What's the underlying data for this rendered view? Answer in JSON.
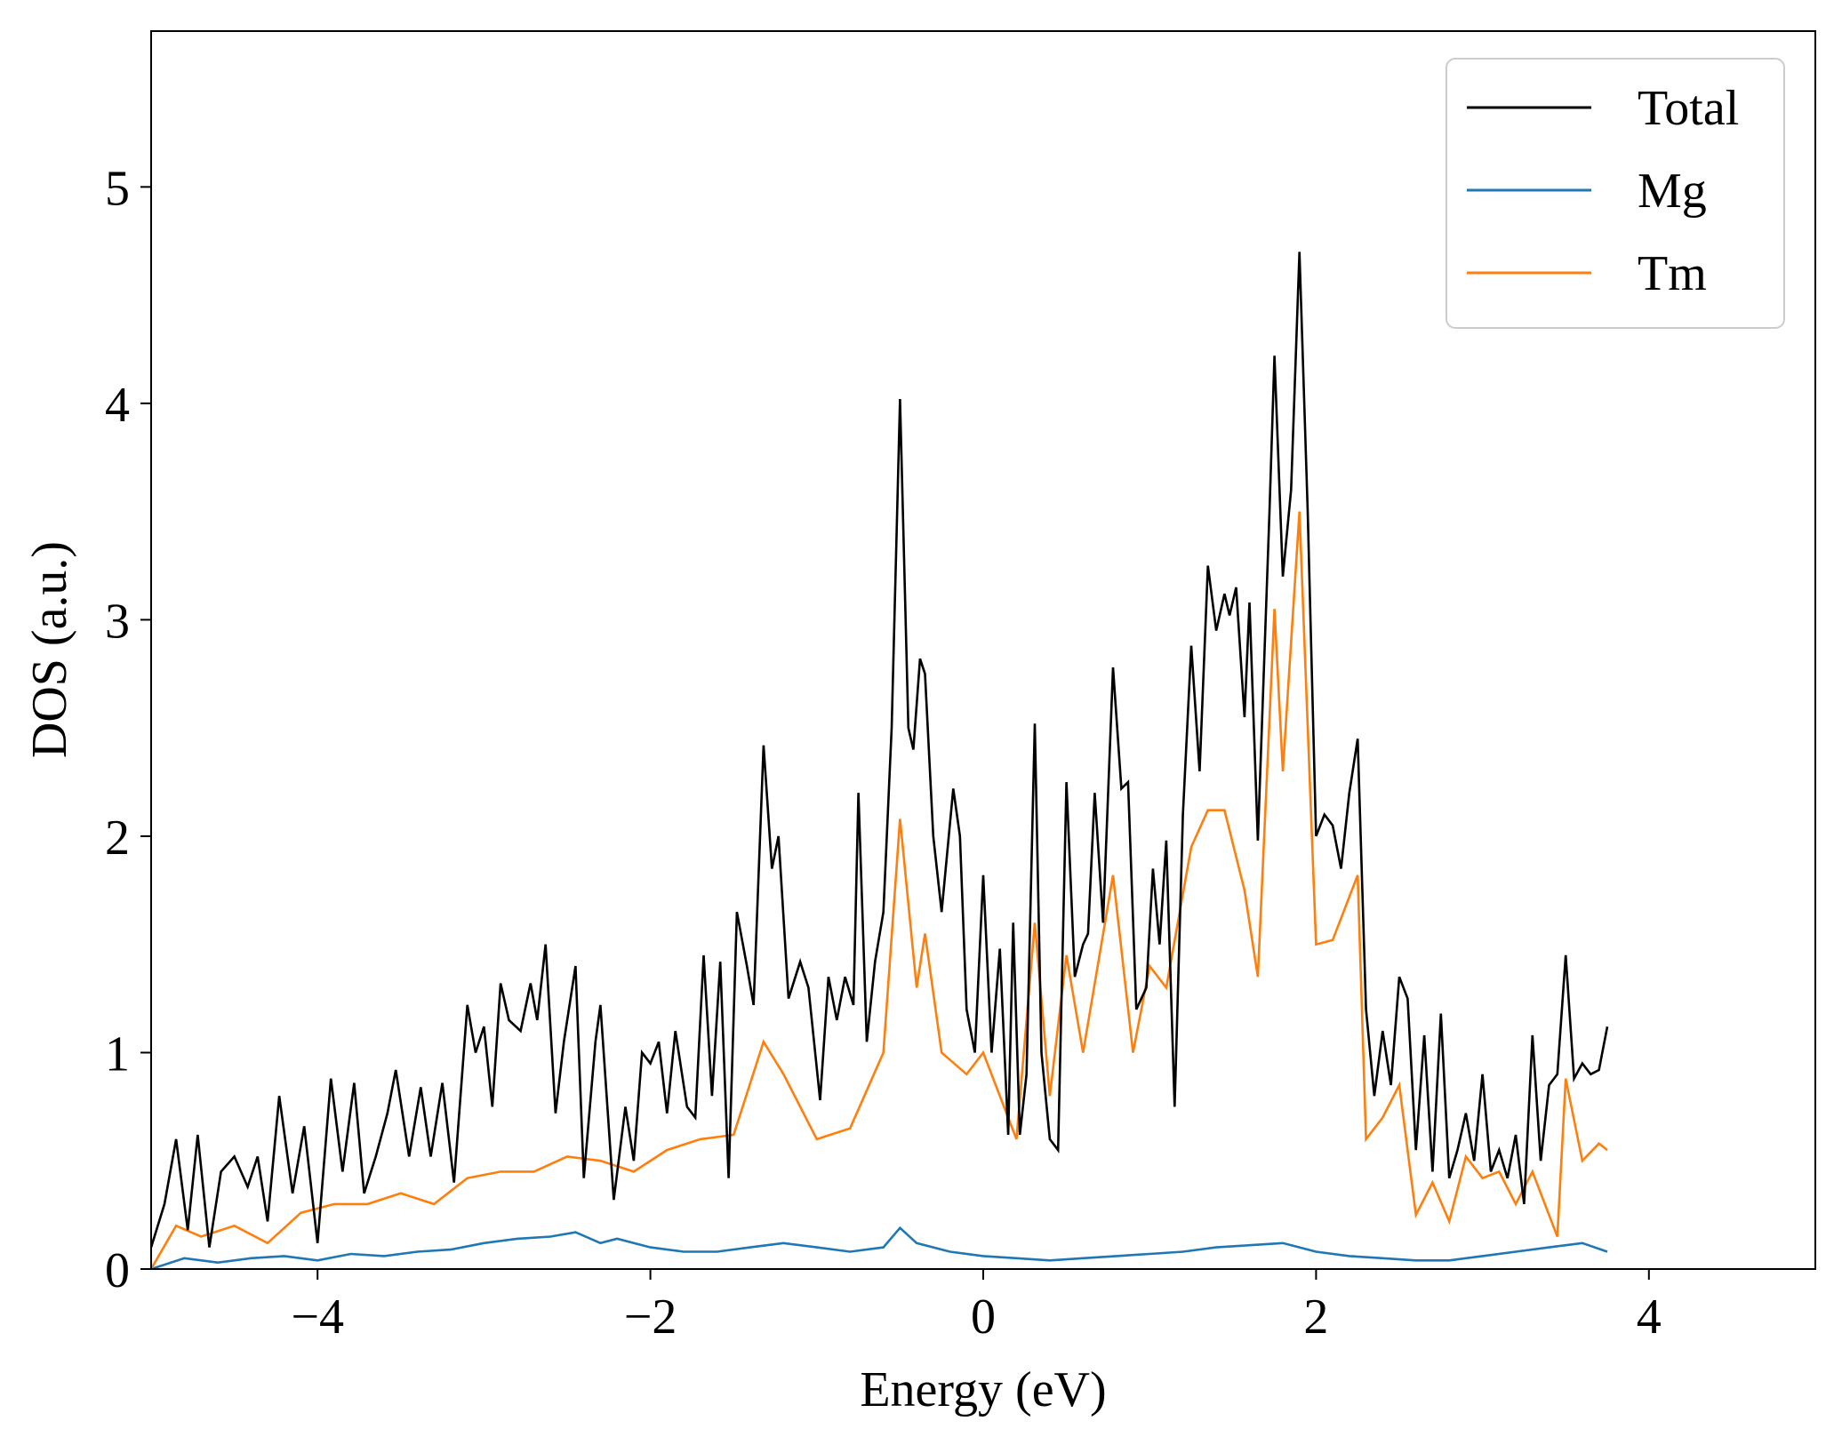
{
  "chart_data": {
    "type": "line",
    "title": "",
    "xlabel": "Energy (eV)",
    "ylabel": "DOS (a.u.)",
    "xlim": [
      -5,
      5
    ],
    "ylim": [
      0,
      5.72
    ],
    "x_ticks": [
      -4,
      -2,
      0,
      2,
      4
    ],
    "x_tick_labels": [
      "−4",
      "−2",
      "0",
      "2",
      "4"
    ],
    "y_ticks": [
      0,
      1,
      2,
      3,
      4,
      5
    ],
    "y_tick_labels": [
      "0",
      "1",
      "2",
      "3",
      "4",
      "5"
    ],
    "grid": false,
    "legend_position": "top-right",
    "series": [
      {
        "name": "Total",
        "color": "#000000",
        "points": [
          [
            -5.0,
            0.1
          ],
          [
            -4.92,
            0.3
          ],
          [
            -4.85,
            0.6
          ],
          [
            -4.78,
            0.18
          ],
          [
            -4.72,
            0.62
          ],
          [
            -4.65,
            0.1
          ],
          [
            -4.58,
            0.45
          ],
          [
            -4.5,
            0.52
          ],
          [
            -4.42,
            0.38
          ],
          [
            -4.36,
            0.52
          ],
          [
            -4.3,
            0.22
          ],
          [
            -4.23,
            0.8
          ],
          [
            -4.15,
            0.35
          ],
          [
            -4.08,
            0.66
          ],
          [
            -4.0,
            0.12
          ],
          [
            -3.92,
            0.88
          ],
          [
            -3.85,
            0.45
          ],
          [
            -3.78,
            0.86
          ],
          [
            -3.72,
            0.35
          ],
          [
            -3.65,
            0.52
          ],
          [
            -3.58,
            0.72
          ],
          [
            -3.53,
            0.92
          ],
          [
            -3.45,
            0.52
          ],
          [
            -3.38,
            0.84
          ],
          [
            -3.32,
            0.52
          ],
          [
            -3.25,
            0.86
          ],
          [
            -3.18,
            0.4
          ],
          [
            -3.1,
            1.22
          ],
          [
            -3.05,
            1.0
          ],
          [
            -3.0,
            1.12
          ],
          [
            -2.95,
            0.75
          ],
          [
            -2.9,
            1.32
          ],
          [
            -2.85,
            1.15
          ],
          [
            -2.78,
            1.1
          ],
          [
            -2.72,
            1.32
          ],
          [
            -2.68,
            1.15
          ],
          [
            -2.63,
            1.5
          ],
          [
            -2.57,
            0.72
          ],
          [
            -2.52,
            1.05
          ],
          [
            -2.45,
            1.4
          ],
          [
            -2.4,
            0.42
          ],
          [
            -2.33,
            1.05
          ],
          [
            -2.3,
            1.22
          ],
          [
            -2.22,
            0.32
          ],
          [
            -2.15,
            0.75
          ],
          [
            -2.1,
            0.5
          ],
          [
            -2.05,
            1.0
          ],
          [
            -2.0,
            0.95
          ],
          [
            -1.95,
            1.05
          ],
          [
            -1.9,
            0.72
          ],
          [
            -1.85,
            1.1
          ],
          [
            -1.78,
            0.75
          ],
          [
            -1.73,
            0.7
          ],
          [
            -1.68,
            1.45
          ],
          [
            -1.63,
            0.8
          ],
          [
            -1.58,
            1.42
          ],
          [
            -1.53,
            0.42
          ],
          [
            -1.48,
            1.65
          ],
          [
            -1.42,
            1.4
          ],
          [
            -1.38,
            1.22
          ],
          [
            -1.32,
            2.42
          ],
          [
            -1.27,
            1.85
          ],
          [
            -1.23,
            2.0
          ],
          [
            -1.17,
            1.25
          ],
          [
            -1.1,
            1.42
          ],
          [
            -1.05,
            1.3
          ],
          [
            -0.98,
            0.78
          ],
          [
            -0.93,
            1.35
          ],
          [
            -0.88,
            1.15
          ],
          [
            -0.83,
            1.35
          ],
          [
            -0.78,
            1.22
          ],
          [
            -0.75,
            2.2
          ],
          [
            -0.7,
            1.05
          ],
          [
            -0.65,
            1.42
          ],
          [
            -0.6,
            1.65
          ],
          [
            -0.55,
            2.5
          ],
          [
            -0.5,
            4.02
          ],
          [
            -0.45,
            2.5
          ],
          [
            -0.42,
            2.4
          ],
          [
            -0.38,
            2.82
          ],
          [
            -0.35,
            2.75
          ],
          [
            -0.3,
            2.0
          ],
          [
            -0.25,
            1.65
          ],
          [
            -0.18,
            2.22
          ],
          [
            -0.14,
            2.0
          ],
          [
            -0.1,
            1.2
          ],
          [
            -0.05,
            1.0
          ],
          [
            0.0,
            1.82
          ],
          [
            0.05,
            1.0
          ],
          [
            0.1,
            1.48
          ],
          [
            0.15,
            0.62
          ],
          [
            0.18,
            1.6
          ],
          [
            0.22,
            0.62
          ],
          [
            0.26,
            0.9
          ],
          [
            0.31,
            2.52
          ],
          [
            0.35,
            1.0
          ],
          [
            0.4,
            0.6
          ],
          [
            0.45,
            0.55
          ],
          [
            0.5,
            2.25
          ],
          [
            0.55,
            1.35
          ],
          [
            0.6,
            1.5
          ],
          [
            0.63,
            1.55
          ],
          [
            0.67,
            2.2
          ],
          [
            0.72,
            1.6
          ],
          [
            0.78,
            2.78
          ],
          [
            0.83,
            2.22
          ],
          [
            0.87,
            2.25
          ],
          [
            0.92,
            1.2
          ],
          [
            0.98,
            1.3
          ],
          [
            1.02,
            1.85
          ],
          [
            1.06,
            1.5
          ],
          [
            1.1,
            1.98
          ],
          [
            1.15,
            0.75
          ],
          [
            1.2,
            2.1
          ],
          [
            1.25,
            2.88
          ],
          [
            1.3,
            2.3
          ],
          [
            1.35,
            3.25
          ],
          [
            1.4,
            2.95
          ],
          [
            1.45,
            3.12
          ],
          [
            1.48,
            3.02
          ],
          [
            1.52,
            3.15
          ],
          [
            1.57,
            2.55
          ],
          [
            1.6,
            3.08
          ],
          [
            1.65,
            1.98
          ],
          [
            1.72,
            3.5
          ],
          [
            1.75,
            4.22
          ],
          [
            1.8,
            3.2
          ],
          [
            1.85,
            3.6
          ],
          [
            1.9,
            4.7
          ],
          [
            1.95,
            3.5
          ],
          [
            2.0,
            2.0
          ],
          [
            2.05,
            2.1
          ],
          [
            2.1,
            2.05
          ],
          [
            2.15,
            1.85
          ],
          [
            2.2,
            2.2
          ],
          [
            2.25,
            2.45
          ],
          [
            2.3,
            1.2
          ],
          [
            2.35,
            0.8
          ],
          [
            2.4,
            1.1
          ],
          [
            2.45,
            0.85
          ],
          [
            2.5,
            1.35
          ],
          [
            2.55,
            1.25
          ],
          [
            2.6,
            0.55
          ],
          [
            2.65,
            1.08
          ],
          [
            2.7,
            0.45
          ],
          [
            2.75,
            1.18
          ],
          [
            2.8,
            0.42
          ],
          [
            2.85,
            0.55
          ],
          [
            2.9,
            0.72
          ],
          [
            2.95,
            0.5
          ],
          [
            3.0,
            0.9
          ],
          [
            3.05,
            0.45
          ],
          [
            3.1,
            0.55
          ],
          [
            3.15,
            0.42
          ],
          [
            3.2,
            0.62
          ],
          [
            3.25,
            0.3
          ],
          [
            3.3,
            1.08
          ],
          [
            3.35,
            0.5
          ],
          [
            3.4,
            0.85
          ],
          [
            3.45,
            0.9
          ],
          [
            3.5,
            1.45
          ],
          [
            3.55,
            0.88
          ],
          [
            3.6,
            0.95
          ],
          [
            3.65,
            0.9
          ],
          [
            3.7,
            0.92
          ],
          [
            3.75,
            1.12
          ]
        ]
      },
      {
        "name": "Mg",
        "color": "#1f77b4",
        "points": [
          [
            -5.0,
            0.0
          ],
          [
            -4.8,
            0.05
          ],
          [
            -4.6,
            0.03
          ],
          [
            -4.4,
            0.05
          ],
          [
            -4.2,
            0.06
          ],
          [
            -4.0,
            0.04
          ],
          [
            -3.8,
            0.07
          ],
          [
            -3.6,
            0.06
          ],
          [
            -3.4,
            0.08
          ],
          [
            -3.2,
            0.09
          ],
          [
            -3.0,
            0.12
          ],
          [
            -2.8,
            0.14
          ],
          [
            -2.6,
            0.15
          ],
          [
            -2.45,
            0.17
          ],
          [
            -2.3,
            0.12
          ],
          [
            -2.2,
            0.14
          ],
          [
            -2.0,
            0.1
          ],
          [
            -1.8,
            0.08
          ],
          [
            -1.6,
            0.08
          ],
          [
            -1.4,
            0.1
          ],
          [
            -1.2,
            0.12
          ],
          [
            -1.0,
            0.1
          ],
          [
            -0.8,
            0.08
          ],
          [
            -0.6,
            0.1
          ],
          [
            -0.5,
            0.19
          ],
          [
            -0.4,
            0.12
          ],
          [
            -0.2,
            0.08
          ],
          [
            0.0,
            0.06
          ],
          [
            0.2,
            0.05
          ],
          [
            0.4,
            0.04
          ],
          [
            0.6,
            0.05
          ],
          [
            0.8,
            0.06
          ],
          [
            1.0,
            0.07
          ],
          [
            1.2,
            0.08
          ],
          [
            1.4,
            0.1
          ],
          [
            1.6,
            0.11
          ],
          [
            1.8,
            0.12
          ],
          [
            1.9,
            0.1
          ],
          [
            2.0,
            0.08
          ],
          [
            2.2,
            0.06
          ],
          [
            2.4,
            0.05
          ],
          [
            2.6,
            0.04
          ],
          [
            2.8,
            0.04
          ],
          [
            3.0,
            0.06
          ],
          [
            3.2,
            0.08
          ],
          [
            3.4,
            0.1
          ],
          [
            3.6,
            0.12
          ],
          [
            3.75,
            0.08
          ]
        ]
      },
      {
        "name": "Tm",
        "color": "#ff7f0e",
        "points": [
          [
            -5.0,
            0.0
          ],
          [
            -4.85,
            0.2
          ],
          [
            -4.7,
            0.15
          ],
          [
            -4.5,
            0.2
          ],
          [
            -4.3,
            0.12
          ],
          [
            -4.1,
            0.26
          ],
          [
            -3.9,
            0.3
          ],
          [
            -3.7,
            0.3
          ],
          [
            -3.5,
            0.35
          ],
          [
            -3.3,
            0.3
          ],
          [
            -3.1,
            0.42
          ],
          [
            -2.9,
            0.45
          ],
          [
            -2.7,
            0.45
          ],
          [
            -2.5,
            0.52
          ],
          [
            -2.3,
            0.5
          ],
          [
            -2.1,
            0.45
          ],
          [
            -1.9,
            0.55
          ],
          [
            -1.7,
            0.6
          ],
          [
            -1.5,
            0.62
          ],
          [
            -1.32,
            1.05
          ],
          [
            -1.2,
            0.9
          ],
          [
            -1.0,
            0.6
          ],
          [
            -0.8,
            0.65
          ],
          [
            -0.6,
            1.0
          ],
          [
            -0.5,
            2.08
          ],
          [
            -0.4,
            1.3
          ],
          [
            -0.35,
            1.55
          ],
          [
            -0.25,
            1.0
          ],
          [
            -0.1,
            0.9
          ],
          [
            0.0,
            1.0
          ],
          [
            0.2,
            0.6
          ],
          [
            0.31,
            1.6
          ],
          [
            0.4,
            0.8
          ],
          [
            0.5,
            1.45
          ],
          [
            0.6,
            1.0
          ],
          [
            0.78,
            1.82
          ],
          [
            0.9,
            1.0
          ],
          [
            1.0,
            1.4
          ],
          [
            1.1,
            1.3
          ],
          [
            1.25,
            1.95
          ],
          [
            1.35,
            2.12
          ],
          [
            1.45,
            2.12
          ],
          [
            1.57,
            1.75
          ],
          [
            1.65,
            1.35
          ],
          [
            1.75,
            3.05
          ],
          [
            1.8,
            2.3
          ],
          [
            1.9,
            3.5
          ],
          [
            2.0,
            1.5
          ],
          [
            2.1,
            1.52
          ],
          [
            2.25,
            1.82
          ],
          [
            2.3,
            0.6
          ],
          [
            2.4,
            0.7
          ],
          [
            2.5,
            0.85
          ],
          [
            2.6,
            0.25
          ],
          [
            2.7,
            0.4
          ],
          [
            2.8,
            0.22
          ],
          [
            2.9,
            0.52
          ],
          [
            3.0,
            0.42
          ],
          [
            3.1,
            0.45
          ],
          [
            3.2,
            0.3
          ],
          [
            3.3,
            0.45
          ],
          [
            3.45,
            0.15
          ],
          [
            3.5,
            0.88
          ],
          [
            3.6,
            0.5
          ],
          [
            3.7,
            0.58
          ],
          [
            3.75,
            0.55
          ]
        ]
      }
    ]
  }
}
